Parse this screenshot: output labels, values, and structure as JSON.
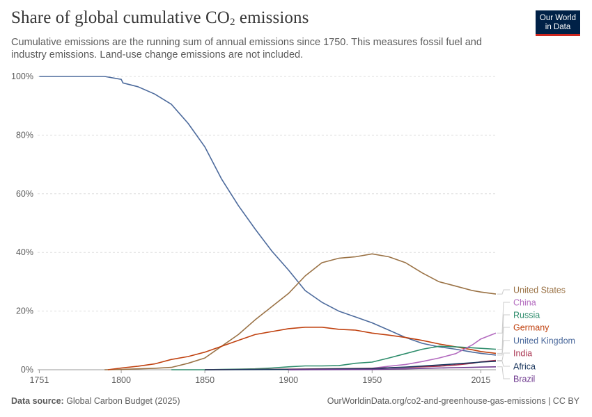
{
  "header": {
    "title_main": "Share of global cumulative CO",
    "title_sub": "2",
    "title_end": " emissions",
    "subtitle": "Cumulative emissions are the running sum of annual emissions since 1750. This measures fossil fuel and industry emissions. Land-use change emissions are not included.",
    "logo_line1": "Our World",
    "logo_line2": "in Data"
  },
  "footer": {
    "source_label": "Data source:",
    "source_value": " Global Carbon Budget (2025)",
    "url_license": "OurWorldinData.org/co2-and-greenhouse-gas-emissions | CC BY"
  },
  "colors": {
    "United States": "#9a7245",
    "China": "#b36bbf",
    "Russia": "#2d8c6b",
    "Germany": "#c0410f",
    "United Kingdom": "#4c6a9c",
    "India": "#a8324f",
    "Africa": "#18355c",
    "Brazil": "#6f3a8f"
  },
  "chart_data": {
    "type": "line",
    "xlabel": "",
    "ylabel": "",
    "xlim": [
      1750,
      2024
    ],
    "ylim": [
      0,
      100
    ],
    "x_ticks": [
      "1751",
      "1800",
      "1850",
      "1900",
      "1950",
      "2015"
    ],
    "y_ticks": [
      "0%",
      "20%",
      "40%",
      "60%",
      "80%",
      "100%"
    ],
    "grid": "horizontal dashed",
    "legend": "right, labels at line ends",
    "series": [
      {
        "name": "United Kingdom",
        "points": [
          [
            1751,
            100
          ],
          [
            1790,
            100
          ],
          [
            1800,
            99
          ],
          [
            1801,
            97.8
          ],
          [
            1810,
            96.5
          ],
          [
            1820,
            94
          ],
          [
            1830,
            90.5
          ],
          [
            1840,
            84
          ],
          [
            1850,
            76
          ],
          [
            1860,
            65
          ],
          [
            1870,
            56
          ],
          [
            1880,
            48
          ],
          [
            1890,
            40.5
          ],
          [
            1900,
            34
          ],
          [
            1910,
            27
          ],
          [
            1920,
            23
          ],
          [
            1930,
            20
          ],
          [
            1940,
            18
          ],
          [
            1950,
            16
          ],
          [
            1960,
            13.5
          ],
          [
            1970,
            11
          ],
          [
            1980,
            9
          ],
          [
            1990,
            7.8
          ],
          [
            2000,
            7
          ],
          [
            2010,
            6
          ],
          [
            2015,
            5.6
          ],
          [
            2024,
            5
          ]
        ]
      },
      {
        "name": "United States",
        "points": [
          [
            1790,
            0
          ],
          [
            1800,
            0.1
          ],
          [
            1810,
            0.3
          ],
          [
            1820,
            0.5
          ],
          [
            1830,
            0.8
          ],
          [
            1840,
            2.2
          ],
          [
            1850,
            4
          ],
          [
            1860,
            8
          ],
          [
            1870,
            12
          ],
          [
            1880,
            17
          ],
          [
            1890,
            21.5
          ],
          [
            1900,
            26
          ],
          [
            1910,
            32
          ],
          [
            1920,
            36.5
          ],
          [
            1930,
            38
          ],
          [
            1940,
            38.5
          ],
          [
            1950,
            39.5
          ],
          [
            1960,
            38.5
          ],
          [
            1970,
            36.5
          ],
          [
            1980,
            33
          ],
          [
            1990,
            30
          ],
          [
            2000,
            28.5
          ],
          [
            2010,
            27
          ],
          [
            2015,
            26.5
          ],
          [
            2024,
            25.8
          ]
        ]
      },
      {
        "name": "Germany",
        "points": [
          [
            1792,
            0
          ],
          [
            1800,
            0.6
          ],
          [
            1810,
            1.2
          ],
          [
            1820,
            2
          ],
          [
            1830,
            3.5
          ],
          [
            1840,
            4.5
          ],
          [
            1850,
            6
          ],
          [
            1860,
            8
          ],
          [
            1870,
            10
          ],
          [
            1880,
            12
          ],
          [
            1890,
            13
          ],
          [
            1900,
            14
          ],
          [
            1910,
            14.5
          ],
          [
            1920,
            14.5
          ],
          [
            1930,
            13.8
          ],
          [
            1940,
            13.5
          ],
          [
            1950,
            12.5
          ],
          [
            1960,
            11.8
          ],
          [
            1970,
            11
          ],
          [
            1980,
            10
          ],
          [
            1990,
            8.8
          ],
          [
            2000,
            7.8
          ],
          [
            2010,
            6.8
          ],
          [
            2015,
            6.2
          ],
          [
            2024,
            5.6
          ]
        ]
      },
      {
        "name": "Russia",
        "points": [
          [
            1830,
            0
          ],
          [
            1850,
            0
          ],
          [
            1860,
            0.1
          ],
          [
            1870,
            0.2
          ],
          [
            1880,
            0.3
          ],
          [
            1890,
            0.6
          ],
          [
            1900,
            1
          ],
          [
            1910,
            1.3
          ],
          [
            1920,
            1.3
          ],
          [
            1930,
            1.4
          ],
          [
            1940,
            2.2
          ],
          [
            1950,
            2.6
          ],
          [
            1960,
            4
          ],
          [
            1970,
            5.5
          ],
          [
            1980,
            7
          ],
          [
            1990,
            8
          ],
          [
            2000,
            7.8
          ],
          [
            2010,
            7.5
          ],
          [
            2015,
            7.3
          ],
          [
            2024,
            7
          ]
        ]
      },
      {
        "name": "China",
        "points": [
          [
            1900,
            0
          ],
          [
            1920,
            0.1
          ],
          [
            1940,
            0.3
          ],
          [
            1950,
            0.5
          ],
          [
            1960,
            1.2
          ],
          [
            1970,
            1.8
          ],
          [
            1980,
            2.8
          ],
          [
            1990,
            4
          ],
          [
            2000,
            5.5
          ],
          [
            2010,
            8.5
          ],
          [
            2015,
            10.5
          ],
          [
            2024,
            12.5
          ]
        ]
      },
      {
        "name": "India",
        "points": [
          [
            1850,
            0
          ],
          [
            1900,
            0.2
          ],
          [
            1950,
            0.5
          ],
          [
            1970,
            0.8
          ],
          [
            1990,
            1.2
          ],
          [
            2000,
            1.6
          ],
          [
            2010,
            2.2
          ],
          [
            2015,
            2.7
          ],
          [
            2024,
            3.2
          ]
        ]
      },
      {
        "name": "Africa",
        "points": [
          [
            1850,
            0
          ],
          [
            1900,
            0.1
          ],
          [
            1950,
            0.4
          ],
          [
            1970,
            0.9
          ],
          [
            1990,
            1.6
          ],
          [
            2000,
            2
          ],
          [
            2010,
            2.4
          ],
          [
            2015,
            2.6
          ],
          [
            2024,
            2.9
          ]
        ]
      },
      {
        "name": "Brazil",
        "points": [
          [
            1900,
            0
          ],
          [
            1950,
            0.1
          ],
          [
            1970,
            0.3
          ],
          [
            1990,
            0.6
          ],
          [
            2000,
            0.7
          ],
          [
            2010,
            0.8
          ],
          [
            2015,
            0.9
          ],
          [
            2024,
            1
          ]
        ]
      }
    ],
    "end_labels": [
      "United States",
      "China",
      "Russia",
      "Germany",
      "United Kingdom",
      "India",
      "Africa",
      "Brazil"
    ]
  }
}
